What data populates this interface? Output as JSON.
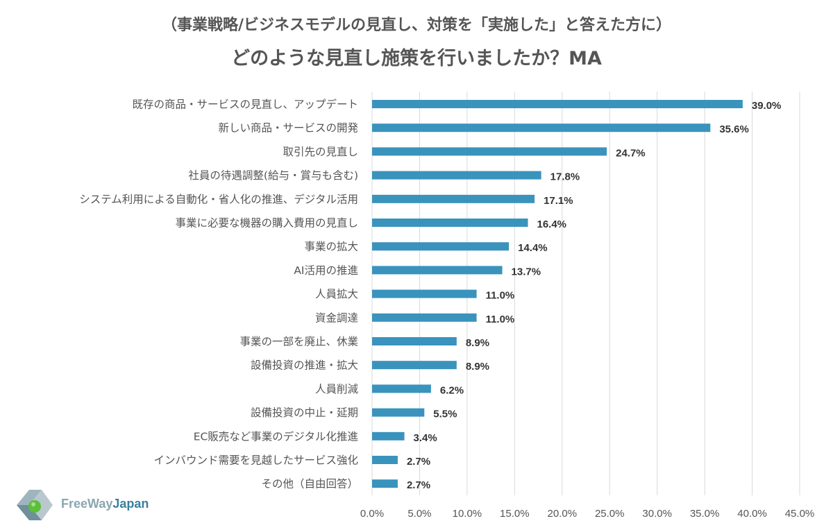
{
  "header": {
    "subtitle": "（事業戦略/ビジネスモデルの見直し、対策を「実施した」と答えた方に）",
    "title": "どのような見直し施策を行いましたか？MA"
  },
  "logo": {
    "part1": "FreeWay",
    "part2": "Japan"
  },
  "colors": {
    "bar": "#3a93bd",
    "grid": "#d9d9d9",
    "logo_green": "#5bbf3a",
    "logo_blue": "#3a7f9e"
  },
  "chart_data": {
    "type": "bar",
    "orientation": "horizontal",
    "categories": [
      "既存の商品・サービスの見直し、アップデート",
      "新しい商品・サービスの開発",
      "取引先の見直し",
      "社員の待遇調整(給与・賞与も含む)",
      "システム利用による自動化・省人化の推進、デジタル活用",
      "事業に必要な機器の購入費用の見直し",
      "事業の拡大",
      "AI活用の推進",
      "人員拡大",
      "資金調達",
      "事業の一部を廃止、休業",
      "設備投資の推進・拡大",
      "人員削減",
      "設備投資の中止・延期",
      "EC販売など事業のデジタル化推進",
      "インバウンド需要を見越したサービス強化",
      "その他（自由回答）"
    ],
    "values": [
      39.0,
      35.6,
      24.7,
      17.8,
      17.1,
      16.4,
      14.4,
      13.7,
      11.0,
      11.0,
      8.9,
      8.9,
      6.2,
      5.5,
      3.4,
      2.7,
      2.7
    ],
    "value_labels": [
      "39.0%",
      "35.6%",
      "24.7%",
      "17.8%",
      "17.1%",
      "16.4%",
      "14.4%",
      "13.7%",
      "11.0%",
      "11.0%",
      "8.9%",
      "8.9%",
      "6.2%",
      "5.5%",
      "3.4%",
      "2.7%",
      "2.7%"
    ],
    "x_ticks": [
      0,
      5,
      10,
      15,
      20,
      25,
      30,
      35,
      40,
      45
    ],
    "x_tick_labels": [
      "0.0%",
      "5.0%",
      "10.0%",
      "15.0%",
      "20.0%",
      "25.0%",
      "30.0%",
      "35.0%",
      "40.0%",
      "45.0%"
    ],
    "xlim": [
      0,
      45
    ],
    "grid": true,
    "legend": "none"
  }
}
